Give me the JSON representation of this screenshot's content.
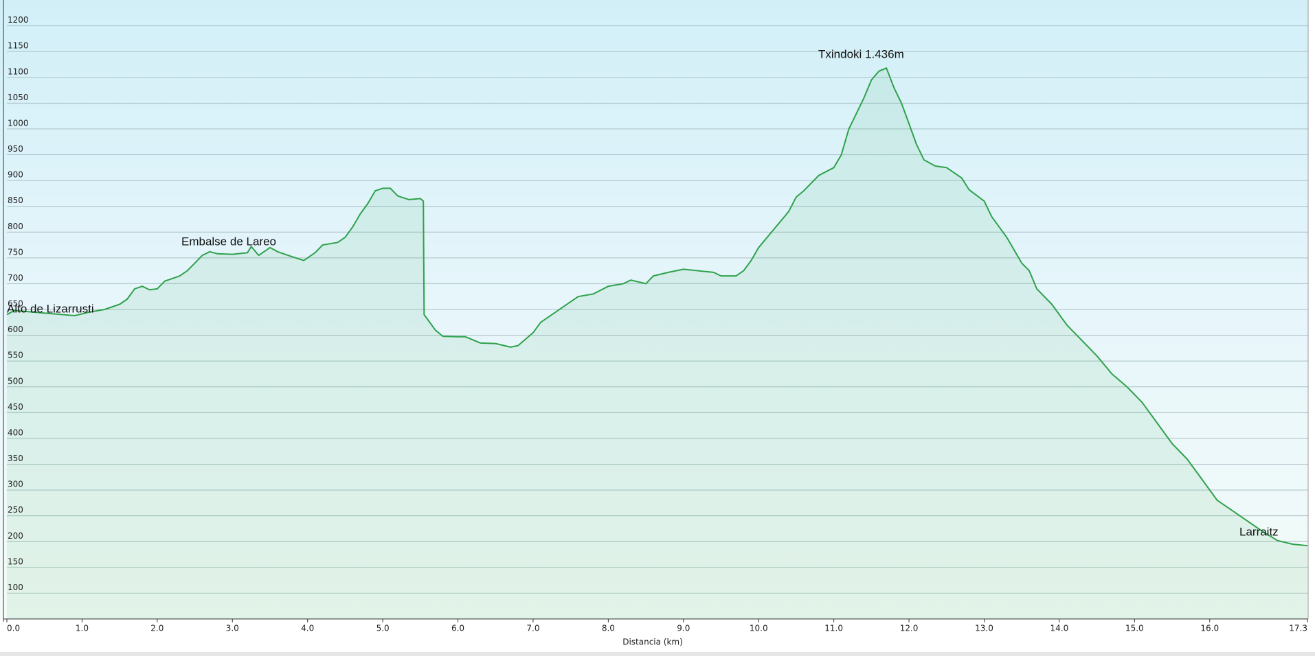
{
  "chart_data": {
    "type": "area",
    "x_label": "Distancia  (km)",
    "annotations": [
      "Alto de Lizarrusti",
      "Embalse de Lareo",
      "Txindoki 1.436m",
      "Larraitz"
    ],
    "color": "#2ea14a",
    "grid": true,
    "xlim": [
      0,
      17.3
    ],
    "ylim": [
      50,
      1250
    ],
    "xticks": [
      {
        "value": 0,
        "label": "0.0"
      },
      {
        "value": 1,
        "label": "1.0"
      },
      {
        "value": 2,
        "label": "2.0"
      },
      {
        "value": 3,
        "label": "3.0"
      },
      {
        "value": 4,
        "label": "4.0"
      },
      {
        "value": 5,
        "label": "5.0"
      },
      {
        "value": 6,
        "label": "6.0"
      },
      {
        "value": 7,
        "label": "7.0"
      },
      {
        "value": 8,
        "label": "8.0"
      },
      {
        "value": 9,
        "label": "9.0"
      },
      {
        "value": 10,
        "label": "10.0"
      },
      {
        "value": 11,
        "label": "11.0"
      },
      {
        "value": 12,
        "label": "12.0"
      },
      {
        "value": 13,
        "label": "13.0"
      },
      {
        "value": 14,
        "label": "14.0"
      },
      {
        "value": 15,
        "label": "15.0"
      },
      {
        "value": 16,
        "label": "16.0"
      },
      {
        "value": 17.3,
        "label": "17.3"
      }
    ],
    "yticks": [
      100,
      150,
      200,
      250,
      300,
      350,
      400,
      450,
      500,
      550,
      600,
      650,
      700,
      750,
      800,
      850,
      900,
      950,
      1000,
      1050,
      1100,
      1150,
      1200
    ],
    "x": [
      0,
      0.1,
      0.5,
      0.9,
      1.1,
      1.3,
      1.5,
      1.6,
      1.7,
      1.8,
      1.9,
      2.0,
      2.1,
      2.3,
      2.4,
      2.5,
      2.6,
      2.7,
      2.8,
      3.0,
      3.2,
      3.25,
      3.35,
      3.5,
      3.6,
      3.8,
      3.95,
      4.1,
      4.2,
      4.4,
      4.5,
      4.6,
      4.7,
      4.8,
      4.9,
      5.0,
      5.1,
      5.2,
      5.35,
      5.5,
      5.54,
      5.55,
      5.7,
      5.8,
      6.0,
      6.1,
      6.3,
      6.5,
      6.7,
      6.8,
      7.0,
      7.1,
      7.2,
      7.4,
      7.6,
      7.8,
      8.0,
      8.2,
      8.3,
      8.5,
      8.6,
      8.8,
      9.0,
      9.4,
      9.5,
      9.7,
      9.8,
      9.9,
      10.0,
      10.2,
      10.4,
      10.5,
      10.6,
      10.8,
      11.0,
      11.1,
      11.2,
      11.3,
      11.4,
      11.5,
      11.6,
      11.7,
      11.8,
      11.9,
      12.0,
      12.1,
      12.2,
      12.35,
      12.5,
      12.7,
      12.8,
      13.0,
      13.1,
      13.3,
      13.5,
      13.6,
      13.7,
      13.9,
      14.0,
      14.1,
      14.3,
      14.5,
      14.7,
      14.9,
      15.1,
      15.3,
      15.5,
      15.7,
      15.9,
      16.1,
      16.3,
      16.5,
      16.7,
      16.9,
      17.1,
      17.3
    ],
    "values": [
      640,
      648,
      643,
      638,
      645,
      650,
      660,
      670,
      690,
      695,
      688,
      690,
      705,
      715,
      725,
      740,
      755,
      762,
      758,
      757,
      760,
      772,
      755,
      770,
      762,
      752,
      745,
      760,
      775,
      780,
      790,
      810,
      835,
      855,
      880,
      885,
      885,
      870,
      863,
      865,
      860,
      640,
      610,
      598,
      597,
      597,
      585,
      584,
      577,
      580,
      605,
      625,
      635,
      655,
      675,
      680,
      695,
      700,
      707,
      700,
      715,
      722,
      728,
      722,
      715,
      715,
      725,
      745,
      770,
      805,
      840,
      868,
      880,
      910,
      925,
      950,
      1000,
      1030,
      1060,
      1095,
      1112,
      1118,
      1080,
      1050,
      1010,
      970,
      940,
      928,
      925,
      905,
      882,
      860,
      830,
      790,
      740,
      725,
      690,
      660,
      640,
      620,
      590,
      560,
      525,
      500,
      470,
      430,
      390,
      360,
      320,
      280,
      260,
      240,
      220,
      202,
      195,
      192
    ]
  }
}
